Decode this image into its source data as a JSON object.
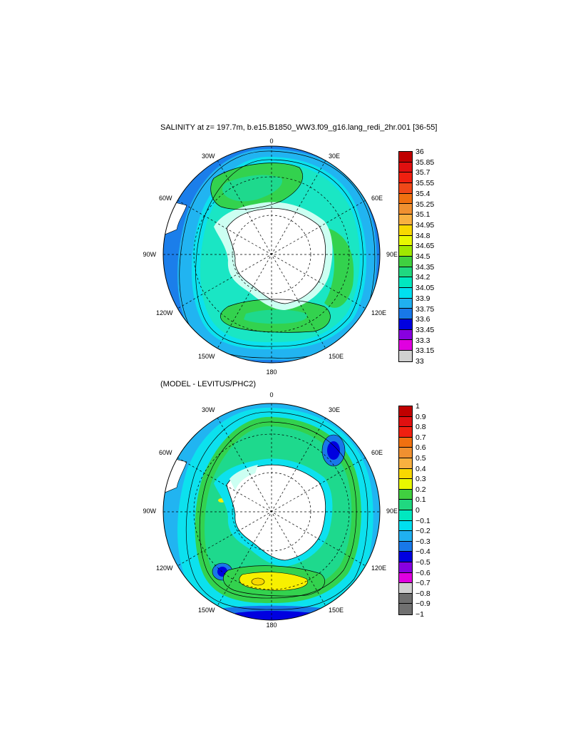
{
  "panels": [
    {
      "title": "SALINITY at z= 197.7m, b.e15.B1850_WW3.f09_g16.lang_redi_2hr.001 [36-55]",
      "lon_labels": {
        "n": "0",
        "s": "180",
        "w": "90W",
        "e": "90E",
        "nw1": "30W",
        "nw2": "60W",
        "ne1": "30E",
        "ne2": "60E",
        "sw1": "120W",
        "sw2": "150W",
        "se1": "120E",
        "se2": "150E"
      },
      "colorbar": {
        "labels": [
          "36",
          "35.85",
          "35.7",
          "35.55",
          "35.4",
          "35.25",
          "35.1",
          "34.95",
          "34.8",
          "34.65",
          "34.5",
          "34.35",
          "34.2",
          "34.05",
          "33.9",
          "33.75",
          "33.6",
          "33.45",
          "33.3",
          "33.15",
          "33"
        ],
        "colors": [
          "#c00000",
          "#e01010",
          "#f02010",
          "#f04818",
          "#f07010",
          "#f09030",
          "#f8b040",
          "#f8d800",
          "#e8f800",
          "#a0e800",
          "#40d040",
          "#20d880",
          "#00e8c0",
          "#00e0f0",
          "#20b0f0",
          "#1878e8",
          "#0000e0",
          "#8800e0",
          "#e000e0",
          "#d0d0d0",
          "#707070"
        ]
      },
      "field_colors": {
        "ocean_far": "#1b7eea",
        "band1": "#21b4f1",
        "band2": "#0ce1ee",
        "band3": "#1ae6c4",
        "band4": "#33d24e",
        "band5": "#1ed98d",
        "ice_shelf": "#ccfff2",
        "land": "#ffffff"
      }
    },
    {
      "title": "(MODEL - LEVITUS/PHC2)",
      "lon_labels": {
        "n": "0",
        "s": "180",
        "w": "90W",
        "e": "90E",
        "nw1": "30W",
        "nw2": "60W",
        "ne1": "30E",
        "ne2": "60E",
        "sw1": "120W",
        "sw2": "150W",
        "se1": "120E",
        "se2": "150E"
      },
      "colorbar": {
        "labels": [
          "1",
          "0.9",
          "0.8",
          "0.7",
          "0.6",
          "0.5",
          "0.4",
          "0.3",
          "0.2",
          "0.1",
          "0",
          "−0.1",
          "−0.2",
          "−0.3",
          "−0.4",
          "−0.5",
          "−0.6",
          "−0.7",
          "−0.8",
          "−0.9",
          "−1"
        ],
        "colors": [
          "#c00000",
          "#e01010",
          "#f02010",
          "#f07010",
          "#f09030",
          "#f8b040",
          "#f8d800",
          "#e8f800",
          "#40d040",
          "#20d880",
          "#00e8c0",
          "#00e0f0",
          "#20b0f0",
          "#1878e8",
          "#0000e0",
          "#8800e0",
          "#e000e0",
          "#d0d0d0",
          "#707070",
          "#707070"
        ]
      },
      "field_colors": {
        "ocean_far": "#21b4f1",
        "band1": "#1878e8",
        "band2": "#0ce1ee",
        "band3": "#33d24e",
        "band4": "#1ed98d",
        "anomaly_high": "#f8f000",
        "anomaly_low": "#0000e0",
        "ice_shelf": "#ccfff2",
        "land": "#ffffff"
      }
    }
  ]
}
